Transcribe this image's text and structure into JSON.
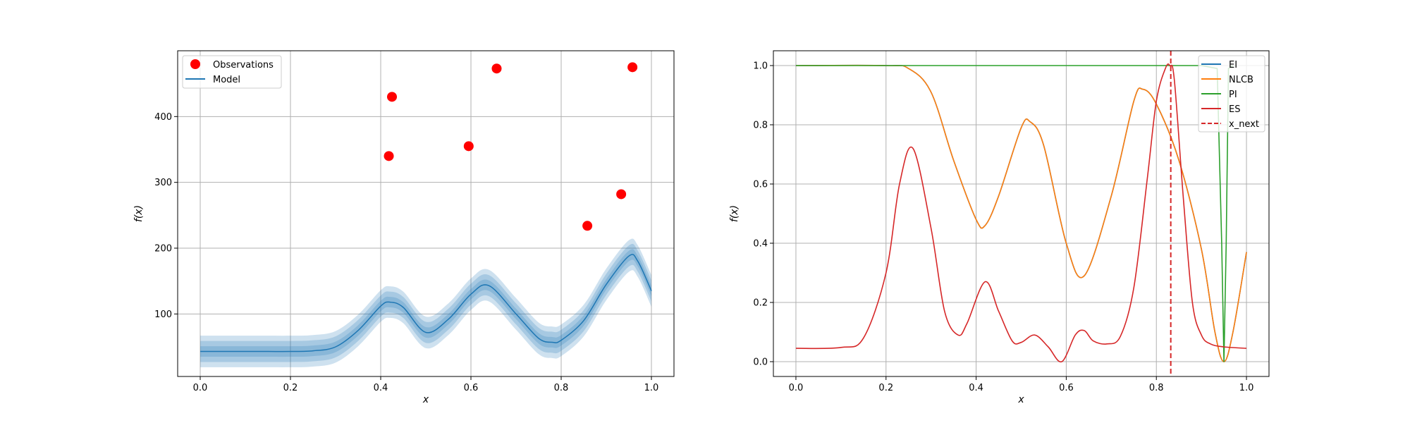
{
  "chart_data": [
    {
      "type": "line",
      "xlabel": "x",
      "ylabel": "f(x)",
      "xlim": [
        -0.05,
        1.05
      ],
      "ylim": [
        5,
        500
      ],
      "xticks": [
        "0.0",
        "0.2",
        "0.4",
        "0.6",
        "0.8",
        "1.0"
      ],
      "yticks": [
        "100",
        "200",
        "300",
        "400"
      ],
      "grid": true,
      "legend_position": "top-left",
      "legend": [
        "Observations",
        "Model"
      ],
      "observations": {
        "name": "Observations",
        "color": "#ff0000",
        "x": [
          0.418,
          0.425,
          0.595,
          0.657,
          0.858,
          0.933,
          0.958
        ],
        "y": [
          340,
          430,
          355,
          473,
          234,
          282,
          475
        ]
      },
      "model": {
        "name": "Model",
        "color": "#1f77b4",
        "x": [
          0.0,
          0.05,
          0.1,
          0.15,
          0.2,
          0.25,
          0.3,
          0.35,
          0.4,
          0.42,
          0.45,
          0.5,
          0.55,
          0.6,
          0.64,
          0.7,
          0.75,
          0.78,
          0.8,
          0.85,
          0.9,
          0.95,
          0.97,
          1.0
        ],
        "mean": [
          43,
          43,
          43,
          43,
          43,
          44,
          50,
          75,
          112,
          118,
          110,
          72,
          92,
          130,
          143,
          100,
          63,
          57,
          60,
          90,
          145,
          188,
          180,
          135
        ],
        "band_half_widths": [
          8,
          16,
          24
        ]
      }
    },
    {
      "type": "line",
      "xlabel": "x",
      "ylabel": "f(x)",
      "xlim": [
        -0.05,
        1.05
      ],
      "ylim": [
        -0.05,
        1.05
      ],
      "xticks": [
        "0.0",
        "0.2",
        "0.4",
        "0.6",
        "0.8",
        "1.0"
      ],
      "yticks": [
        "0.0",
        "0.2",
        "0.4",
        "0.6",
        "0.8",
        "1.0"
      ],
      "grid": true,
      "legend_position": "top-right",
      "legend": [
        "EI",
        "NLCB",
        "PI",
        "ES",
        "x_next"
      ],
      "series": [
        {
          "name": "EI",
          "color": "#1f77b4",
          "x": [
            0.0,
            0.2,
            0.25,
            0.3,
            0.35,
            0.4,
            0.42,
            0.45,
            0.5,
            0.52,
            0.55,
            0.6,
            0.64,
            0.7,
            0.75,
            0.77,
            0.8,
            0.85,
            0.9,
            0.93,
            0.95,
            0.97,
            1.0
          ],
          "y": [
            1.0,
            1.0,
            0.99,
            0.91,
            0.68,
            0.48,
            0.46,
            0.56,
            0.79,
            0.81,
            0.73,
            0.4,
            0.29,
            0.56,
            0.88,
            0.92,
            0.87,
            0.68,
            0.38,
            0.1,
            0.0,
            0.1,
            0.37
          ]
        },
        {
          "name": "NLCB",
          "color": "#ff7f0e",
          "x": [
            0.0,
            0.2,
            0.25,
            0.3,
            0.35,
            0.4,
            0.42,
            0.45,
            0.5,
            0.52,
            0.55,
            0.6,
            0.64,
            0.7,
            0.75,
            0.77,
            0.8,
            0.85,
            0.9,
            0.93,
            0.95,
            0.97,
            1.0
          ],
          "y": [
            1.0,
            1.0,
            0.99,
            0.91,
            0.68,
            0.48,
            0.46,
            0.56,
            0.79,
            0.81,
            0.73,
            0.4,
            0.29,
            0.56,
            0.88,
            0.92,
            0.87,
            0.68,
            0.38,
            0.1,
            0.0,
            0.1,
            0.37
          ]
        },
        {
          "name": "PI",
          "color": "#2ca02c",
          "x": [
            0.0,
            0.9,
            0.935,
            0.945,
            0.95,
            0.955,
            0.96,
            0.97
          ],
          "y": [
            1.0,
            1.0,
            0.99,
            0.4,
            0.0,
            0.4,
            0.99,
            1.0
          ]
        },
        {
          "name": "ES",
          "color": "#d62728",
          "x": [
            0.0,
            0.1,
            0.15,
            0.2,
            0.23,
            0.26,
            0.3,
            0.33,
            0.36,
            0.38,
            0.42,
            0.45,
            0.48,
            0.5,
            0.53,
            0.56,
            0.59,
            0.62,
            0.64,
            0.66,
            0.69,
            0.72,
            0.75,
            0.78,
            0.8,
            0.82,
            0.83,
            0.84,
            0.86,
            0.88,
            0.9,
            0.92,
            0.95,
            1.0
          ],
          "y": [
            0.045,
            0.048,
            0.08,
            0.3,
            0.6,
            0.72,
            0.45,
            0.17,
            0.09,
            0.13,
            0.27,
            0.17,
            0.07,
            0.065,
            0.09,
            0.05,
            0.0,
            0.09,
            0.105,
            0.07,
            0.06,
            0.085,
            0.25,
            0.62,
            0.88,
            0.99,
            1.0,
            0.95,
            0.55,
            0.2,
            0.09,
            0.06,
            0.05,
            0.045
          ]
        }
      ],
      "x_next": {
        "name": "x_next",
        "color": "#d62728",
        "x": 0.832
      }
    }
  ]
}
